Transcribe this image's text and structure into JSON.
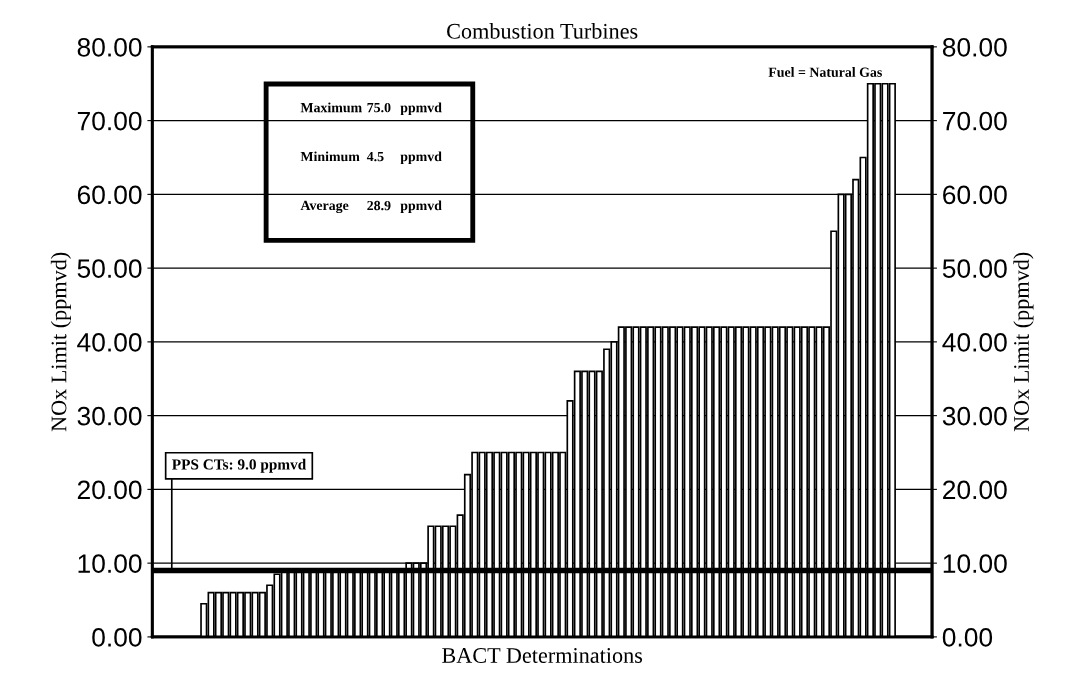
{
  "chart_data": {
    "type": "bar",
    "title": "Combustion Turbines",
    "xlabel": "BACT Determinations",
    "ylabel": "NOx Limit (ppmvd)",
    "y2label": "NOx Limit (ppmvd)",
    "categories": [
      null,
      null,
      null,
      null,
      null,
      null,
      null,
      null,
      null,
      null,
      null,
      null,
      null,
      null,
      null,
      null,
      null,
      null,
      null,
      null,
      null,
      null,
      null,
      null,
      null,
      null,
      null,
      null,
      null,
      null,
      null,
      null,
      null,
      null,
      null,
      null,
      null,
      null,
      null,
      null,
      null,
      null,
      null,
      null,
      null,
      null,
      null,
      null,
      null,
      null,
      null,
      null,
      null,
      null,
      null,
      null,
      null,
      null,
      null,
      null,
      null,
      null,
      null,
      null,
      null,
      null,
      null,
      null,
      null,
      null,
      null,
      null,
      null,
      null,
      null,
      null,
      null,
      null,
      null,
      null,
      null,
      null,
      null,
      null,
      null,
      null,
      null,
      null,
      null,
      null,
      null,
      null,
      null,
      null,
      null
    ],
    "values": [
      4.5,
      6,
      6,
      6,
      6,
      6,
      6,
      6,
      6,
      7,
      8.5,
      9,
      9,
      9,
      9,
      9,
      9,
      9,
      9,
      9,
      9,
      9,
      9,
      9,
      9,
      9,
      9,
      9,
      10,
      10,
      10,
      15,
      15,
      15,
      15,
      16.5,
      22,
      25,
      25,
      25,
      25,
      25,
      25,
      25,
      25,
      25,
      25,
      25,
      25,
      25,
      32,
      36,
      36,
      36,
      36,
      39,
      40,
      42,
      42,
      42,
      42,
      42,
      42,
      42,
      42,
      42,
      42,
      42,
      42,
      42,
      42,
      42,
      42,
      42,
      42,
      42,
      42,
      42,
      42,
      42,
      42,
      42,
      42,
      42,
      42,
      42,
      55,
      60,
      60,
      62,
      65,
      75,
      75,
      75,
      75
    ],
    "color": "#ffffff",
    "ylim": [
      0,
      80
    ],
    "yticks": [
      {
        "value": 0,
        "label": "0.00"
      },
      {
        "value": 10,
        "label": "10.00"
      },
      {
        "value": 20,
        "label": "20.00"
      },
      {
        "value": 30,
        "label": "30.00"
      },
      {
        "value": 40,
        "label": "40.00"
      },
      {
        "value": 50,
        "label": "50.00"
      },
      {
        "value": 60,
        "label": "60.00"
      },
      {
        "value": 70,
        "label": "70.00"
      },
      {
        "value": 80,
        "label": "80.00"
      }
    ],
    "y2lim": [
      0,
      80
    ],
    "y2ticks": [
      {
        "value": 0,
        "label": "0.00"
      },
      {
        "value": 10,
        "label": "10.00"
      },
      {
        "value": 20,
        "label": "20.00"
      },
      {
        "value": 30,
        "label": "30.00"
      },
      {
        "value": 40,
        "label": "40.00"
      },
      {
        "value": 50,
        "label": "50.00"
      },
      {
        "value": 60,
        "label": "60.00"
      },
      {
        "value": 70,
        "label": "70.00"
      },
      {
        "value": 80,
        "label": "80.00"
      }
    ],
    "grid": "y",
    "ref_lines": [
      {
        "axis": "y",
        "value": 9.0,
        "label": "PPS CTs: 9.0 ppmvd",
        "color": "#000000"
      }
    ],
    "annotations": [
      "Maximum 75.0 ppmvd",
      "Minimum 4.5 ppmvd",
      "Average 28.9 ppmvd",
      "Fuel = Natural Gas"
    ]
  }
}
